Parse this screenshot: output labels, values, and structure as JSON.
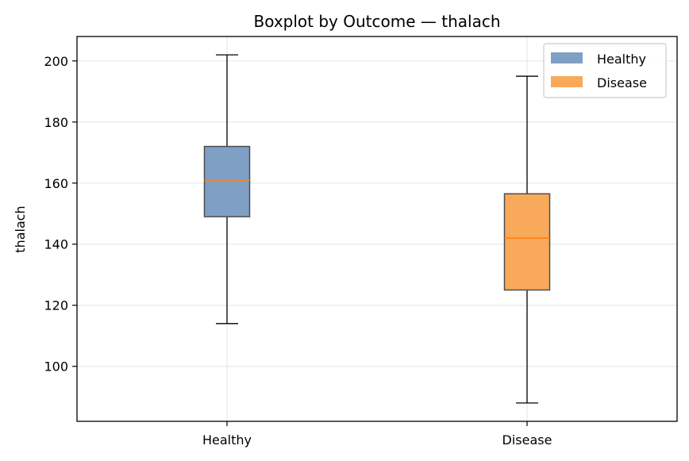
{
  "chart_data": {
    "type": "boxplot",
    "title": "Boxplot by Outcome — thalach",
    "xlabel": "",
    "ylabel": "thalach",
    "categories": [
      "Healthy",
      "Disease"
    ],
    "ylim": [
      82,
      208
    ],
    "yticks": [
      100,
      120,
      140,
      160,
      180,
      200
    ],
    "grid": true,
    "legend": {
      "placement": "upper-right",
      "entries": [
        "Healthy",
        "Disease"
      ]
    },
    "series": [
      {
        "name": "Healthy",
        "whisker_low": 114,
        "q1": 149,
        "median": 161,
        "q3": 172,
        "whisker_high": 202,
        "color": "#7f9fc5"
      },
      {
        "name": "Disease",
        "whisker_low": 88,
        "q1": 125,
        "median": 142,
        "q3": 156.5,
        "whisker_high": 195,
        "color": "#f9a95a"
      }
    ],
    "median_color": "#ff7f0e"
  }
}
